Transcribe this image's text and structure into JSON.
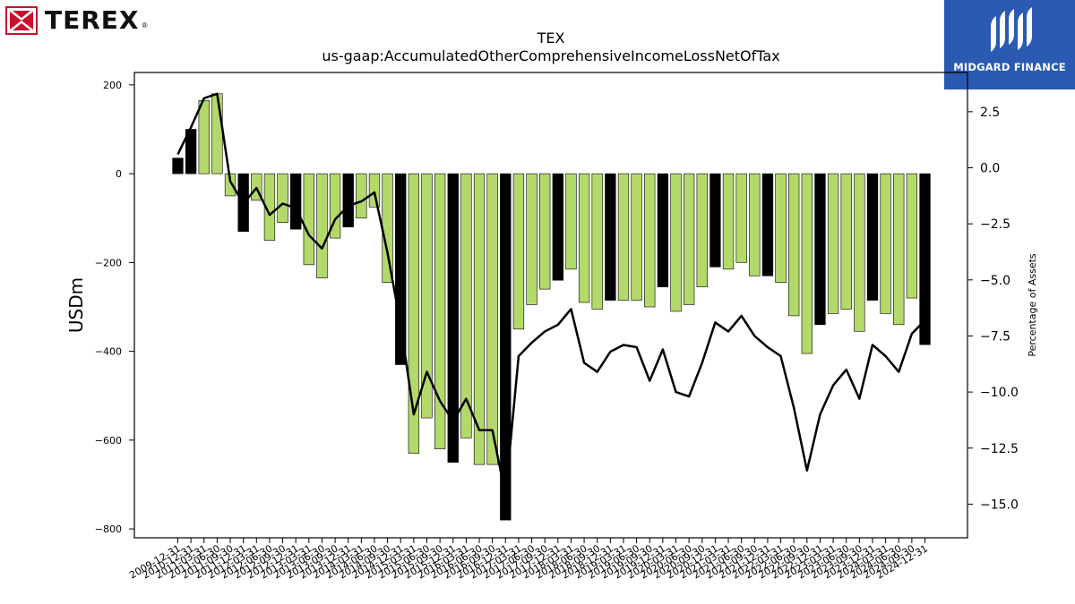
{
  "header": {
    "brand_name": "TEREX",
    "brand_reg": "®",
    "partner_name": "MIDGARD FINANCE"
  },
  "colors": {
    "bar_positive_change": "#b3d96b",
    "bar_year_end": "#000000",
    "line": "#000000"
  },
  "chart_data": {
    "type": "bar",
    "title": "TEX",
    "subtitle": "us-gaap:AccumulatedOtherComprehensiveIncomeLossNetOfTax",
    "ylabel": "USDm",
    "y2label": "Percentage of Assets",
    "ylim": [
      -820,
      228
    ],
    "y2lim": [
      -16.5,
      4.25
    ],
    "yticks": [
      200,
      0,
      -200,
      -400,
      -600,
      -800
    ],
    "y2ticks": [
      2.5,
      0.0,
      -2.5,
      -5.0,
      -7.5,
      -10.0,
      -12.5,
      -15.0
    ],
    "categories": [
      "2009-12-31",
      "2010-12-31",
      "2011-03-31",
      "2011-06-30",
      "2011-09-30",
      "2011-12-31",
      "2012-03-31",
      "2012-06-30",
      "2012-09-30",
      "2012-12-31",
      "2013-03-31",
      "2013-06-30",
      "2013-09-30",
      "2013-12-31",
      "2014-03-31",
      "2014-06-30",
      "2014-09-30",
      "2014-12-31",
      "2015-03-31",
      "2015-06-30",
      "2015-09-30",
      "2015-12-31",
      "2016-03-31",
      "2016-06-30",
      "2016-09-30",
      "2016-12-31",
      "2017-03-31",
      "2017-06-30",
      "2017-09-30",
      "2017-12-31",
      "2018-03-31",
      "2018-06-30",
      "2018-09-30",
      "2018-12-31",
      "2019-03-31",
      "2019-06-30",
      "2019-09-30",
      "2019-12-31",
      "2020-03-31",
      "2020-06-30",
      "2020-09-30",
      "2020-12-31",
      "2021-03-31",
      "2021-06-30",
      "2021-09-30",
      "2021-12-31",
      "2022-03-31",
      "2022-06-30",
      "2022-09-30",
      "2022-12-31",
      "2023-03-31",
      "2023-06-30",
      "2023-09-30",
      "2023-12-31",
      "2024-03-31",
      "2024-06-30",
      "2024-09-30",
      "2024-12-31"
    ],
    "series": [
      {
        "type": "bar",
        "values": [
          35,
          100,
          165,
          180,
          -50,
          -130,
          -60,
          -150,
          -110,
          -125,
          -205,
          -235,
          -145,
          -120,
          -100,
          -75,
          -245,
          -430,
          -630,
          -550,
          -620,
          -650,
          -595,
          -655,
          -655,
          -780,
          -350,
          -295,
          -260,
          -240,
          -215,
          -290,
          -305,
          -285,
          -285,
          -285,
          -300,
          -255,
          -310,
          -295,
          -255,
          -210,
          -215,
          -200,
          -230,
          -230,
          -245,
          -320,
          -405,
          -340,
          -315,
          -305,
          -355,
          -285,
          -315,
          -340,
          -280,
          -385
        ],
        "year_end": [
          true,
          true,
          false,
          false,
          false,
          true,
          false,
          false,
          false,
          true,
          false,
          false,
          false,
          true,
          false,
          false,
          false,
          true,
          false,
          false,
          false,
          true,
          false,
          false,
          false,
          true,
          false,
          false,
          false,
          true,
          false,
          false,
          false,
          true,
          false,
          false,
          false,
          true,
          false,
          false,
          false,
          true,
          false,
          false,
          false,
          true,
          false,
          false,
          false,
          true,
          false,
          false,
          false,
          true,
          false,
          false,
          false,
          true
        ]
      },
      {
        "type": "line",
        "axis": "y2",
        "values": [
          0.6,
          1.8,
          3.1,
          3.3,
          -0.6,
          -1.6,
          -0.9,
          -2.1,
          -1.6,
          -1.8,
          -3.0,
          -3.6,
          -2.3,
          -1.7,
          -1.5,
          -1.1,
          -3.8,
          -7.0,
          -11.0,
          -9.1,
          -10.4,
          -11.3,
          -10.3,
          -11.7,
          -11.7,
          -14.6,
          -8.4,
          -7.8,
          -7.3,
          -7.0,
          -6.3,
          -8.7,
          -9.1,
          -8.2,
          -7.9,
          -8.0,
          -9.5,
          -8.1,
          -10.0,
          -10.2,
          -8.7,
          -6.9,
          -7.3,
          -6.6,
          -7.5,
          -8.0,
          -8.4,
          -10.7,
          -13.5,
          -11.0,
          -9.7,
          -9.0,
          -10.3,
          -7.9,
          -8.4,
          -9.1,
          -7.4,
          -6.8
        ]
      }
    ],
    "legend": "none",
    "grid": false
  }
}
